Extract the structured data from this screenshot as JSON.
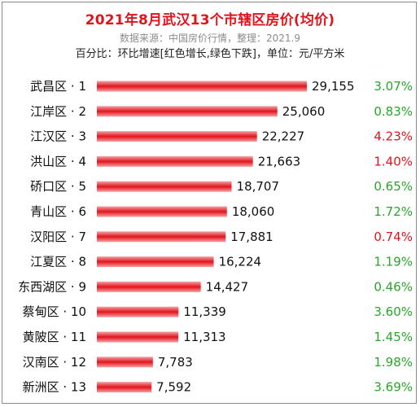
{
  "header": {
    "title": "2021年8月武汉13个市辖区房价(均价)",
    "source": "数据来源：中国房价行情，整理：2021.9",
    "note": "百分比：环比增速[红色增长,绿色下跌]，单位：元/平方米"
  },
  "colors": {
    "title": "#e1141c",
    "bar": "#e1141c",
    "increase": "#e1141c",
    "decrease": "#2aa52a"
  },
  "chart_data": {
    "type": "bar",
    "orientation": "horizontal",
    "categories": [
      "武昌区 · 1",
      "江岸区 · 2",
      "江汉区 · 3",
      "洪山区 · 4",
      "硚口区 · 5",
      "青山区 · 6",
      "汉阳区 · 7",
      "江夏区 · 8",
      "东西湖区 · 9",
      "蔡甸区 · 10",
      "黄陂区 · 11",
      "汉南区 · 12",
      "新洲区 · 13"
    ],
    "values": [
      29155,
      25060,
      22227,
      21663,
      18707,
      18060,
      17881,
      16224,
      14427,
      11339,
      11313,
      7783,
      7592
    ],
    "value_labels": [
      "29,155",
      "25,060",
      "22,227",
      "21,663",
      "18,707",
      "18,060",
      "17,881",
      "16,224",
      "14,427",
      "11,339",
      "11,313",
      "7,783",
      "7,592"
    ],
    "mom_change": [
      "3.07%",
      "0.83%",
      "4.23%",
      "1.40%",
      "0.65%",
      "1.72%",
      "0.74%",
      "1.19%",
      "0.46%",
      "3.60%",
      "1.45%",
      "1.98%",
      "3.69%"
    ],
    "mom_direction": [
      "down",
      "down",
      "up",
      "up",
      "down",
      "down",
      "up",
      "down",
      "down",
      "down",
      "down",
      "down",
      "down"
    ],
    "grid": false,
    "legend": "none"
  }
}
